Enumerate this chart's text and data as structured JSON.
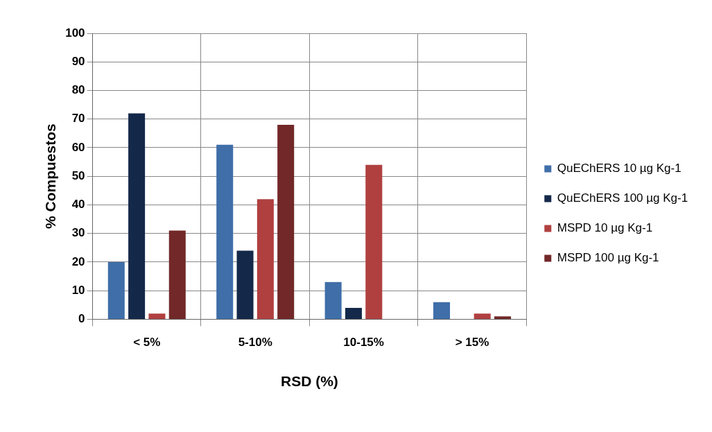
{
  "chart_data": {
    "type": "bar",
    "xlabel": "RSD (%)",
    "ylabel": "% Compuestos",
    "categories": [
      "< 5%",
      "5-10%",
      "10-15%",
      "> 15%"
    ],
    "series": [
      {
        "name": "QuEChERS 10 µg Kg-1",
        "color": "#3f6ea8",
        "values": [
          20,
          61,
          13,
          6
        ]
      },
      {
        "name": "QuEChERS 100 µg Kg-1",
        "color": "#14294a",
        "values": [
          72,
          24,
          4,
          0
        ]
      },
      {
        "name": "MSPD 10 µg Kg-1",
        "color": "#b04040",
        "values": [
          2,
          42,
          54,
          2
        ]
      },
      {
        "name": "MSPD 100 µg Kg-1",
        "color": "#722828",
        "values": [
          31,
          68,
          0,
          1
        ]
      }
    ],
    "ylim": [
      0,
      100
    ],
    "yticks": [
      0,
      10,
      20,
      30,
      40,
      50,
      60,
      70,
      80,
      90,
      100
    ],
    "grid": true,
    "legend": "right"
  }
}
